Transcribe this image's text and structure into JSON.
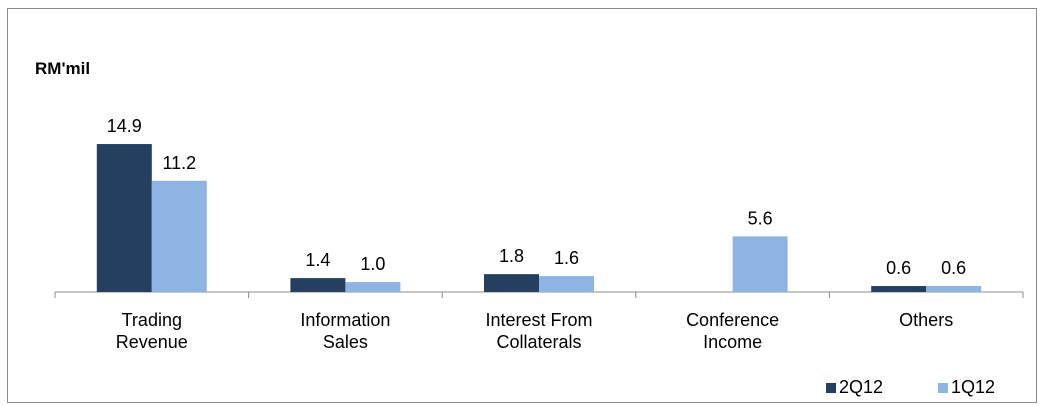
{
  "chart_data": {
    "type": "bar",
    "unit_label": "RM'mil",
    "categories": [
      [
        "Trading",
        "Revenue"
      ],
      [
        "Information",
        "Sales"
      ],
      [
        "Interest From",
        "Collaterals"
      ],
      [
        "Conference",
        "Income"
      ],
      [
        "Others"
      ]
    ],
    "series": [
      {
        "name": "2Q12",
        "color": "#243f60",
        "values": [
          14.9,
          1.4,
          1.8,
          null,
          0.6
        ],
        "labels": [
          "14.9",
          "1.4",
          "1.8",
          "",
          "0.6"
        ]
      },
      {
        "name": "1Q12",
        "color": "#8eb4e3",
        "values": [
          11.2,
          1.0,
          1.6,
          5.6,
          0.6
        ],
        "labels": [
          "11.2",
          "1.0",
          "1.6",
          "5.6",
          "0.6"
        ]
      }
    ],
    "legend_position": "bottom-right",
    "grid": false
  }
}
